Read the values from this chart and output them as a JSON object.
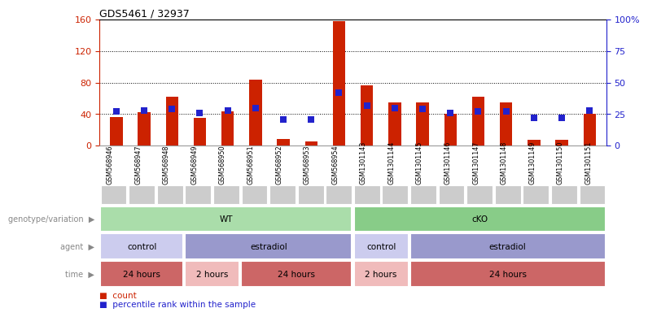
{
  "title": "GDS5461 / 32937",
  "samples": [
    "GSM568946",
    "GSM568947",
    "GSM568948",
    "GSM568949",
    "GSM568950",
    "GSM568951",
    "GSM568952",
    "GSM568953",
    "GSM568954",
    "GSM1301143",
    "GSM1301144",
    "GSM1301145",
    "GSM1301146",
    "GSM1301147",
    "GSM1301148",
    "GSM1301149",
    "GSM1301150",
    "GSM1301151"
  ],
  "count_values": [
    36,
    42,
    62,
    35,
    43,
    84,
    8,
    5,
    158,
    76,
    55,
    55,
    40,
    62,
    55,
    7,
    7,
    40
  ],
  "percentile_values": [
    27,
    28,
    29,
    26,
    28,
    30,
    21,
    21,
    42,
    32,
    30,
    29,
    26,
    27,
    27,
    22,
    22,
    28
  ],
  "left_ylim": [
    0,
    160
  ],
  "right_ylim": [
    0,
    100
  ],
  "left_yticks": [
    0,
    40,
    80,
    120,
    160
  ],
  "right_yticks": [
    0,
    25,
    50,
    75,
    100
  ],
  "right_yticklabels": [
    "0",
    "25",
    "50",
    "75",
    "100%"
  ],
  "bar_color": "#cc2200",
  "dot_color": "#2222cc",
  "bg_color": "#ffffff",
  "genotype_groups": [
    {
      "name": "WT",
      "start": 0,
      "end": 9,
      "color": "#aaddaa"
    },
    {
      "name": "cKO",
      "start": 9,
      "end": 18,
      "color": "#88cc88"
    }
  ],
  "agent_groups": [
    {
      "name": "control",
      "start": 0,
      "end": 3,
      "color": "#ccccee"
    },
    {
      "name": "estradiol",
      "start": 3,
      "end": 9,
      "color": "#9999cc"
    },
    {
      "name": "control",
      "start": 9,
      "end": 11,
      "color": "#ccccee"
    },
    {
      "name": "estradiol",
      "start": 11,
      "end": 18,
      "color": "#9999cc"
    }
  ],
  "time_groups": [
    {
      "name": "24 hours",
      "start": 0,
      "end": 3,
      "color": "#cc6666"
    },
    {
      "name": "2 hours",
      "start": 3,
      "end": 5,
      "color": "#f0bbbb"
    },
    {
      "name": "24 hours",
      "start": 5,
      "end": 9,
      "color": "#cc6666"
    },
    {
      "name": "2 hours",
      "start": 9,
      "end": 11,
      "color": "#f0bbbb"
    },
    {
      "name": "24 hours",
      "start": 11,
      "end": 18,
      "color": "#cc6666"
    }
  ],
  "genotype_label": "genotype/variation",
  "agent_label": "agent",
  "time_label": "time",
  "legend_count_label": "count",
  "legend_dot_label": "percentile rank within the sample",
  "bar_width": 0.45,
  "dot_size": 28,
  "left_tick_color": "#cc2200",
  "right_tick_color": "#2222cc",
  "row_label_color": "#888888",
  "sample_bg": "#cccccc"
}
